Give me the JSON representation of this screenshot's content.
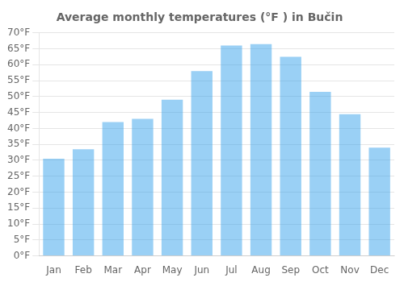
{
  "chart_data": {
    "type": "bar",
    "title": "Average monthly temperatures (°F ) in Bučin",
    "categories": [
      "Jan",
      "Feb",
      "Mar",
      "Apr",
      "May",
      "Jun",
      "Jul",
      "Aug",
      "Sep",
      "Oct",
      "Nov",
      "Dec"
    ],
    "values": [
      30.5,
      33.5,
      42.0,
      43.0,
      49.0,
      58.0,
      66.0,
      66.5,
      62.5,
      51.5,
      44.5,
      34.0
    ],
    "ylim": [
      0,
      70
    ],
    "yticks": [
      {
        "value": 0,
        "label": "0°F"
      },
      {
        "value": 5,
        "label": "5°F"
      },
      {
        "value": 10,
        "label": "10°F"
      },
      {
        "value": 15,
        "label": "15°F"
      },
      {
        "value": 20,
        "label": "20°F"
      },
      {
        "value": 25,
        "label": "25°F"
      },
      {
        "value": 30,
        "label": "30°F"
      },
      {
        "value": 35,
        "label": "35°F"
      },
      {
        "value": 40,
        "label": "40°F"
      },
      {
        "value": 45,
        "label": "45°F"
      },
      {
        "value": 50,
        "label": "50°F"
      },
      {
        "value": 55,
        "label": "55°F"
      },
      {
        "value": 60,
        "label": "60°F"
      },
      {
        "value": 65,
        "label": "65°F"
      },
      {
        "value": 70,
        "label": "70°F"
      }
    ],
    "grid": true
  }
}
